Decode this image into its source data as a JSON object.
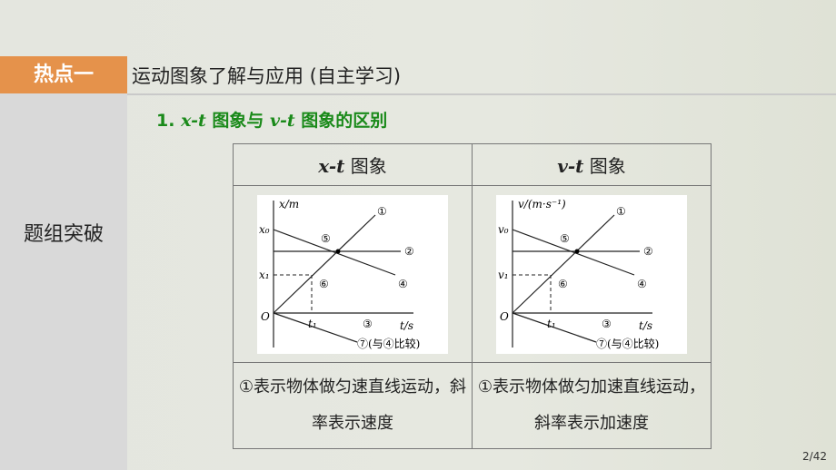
{
  "header": {
    "tag": "热点一",
    "title": "运动图象了解与应用 (自主学习)"
  },
  "sidebar": {
    "label": "题组突破"
  },
  "subtitle": {
    "num": "1.",
    "a": "x-t",
    "mid": " 图象与 ",
    "b": "v-t",
    "end": " 图象的区别"
  },
  "table": {
    "headers": [
      {
        "var": "x-t",
        "word": " 图象"
      },
      {
        "var": "v-t",
        "word": " 图象"
      }
    ],
    "diagrams": [
      {
        "ylabel": "x/m",
        "y0": "x₀",
        "y1": "x₁",
        "origin": "O",
        "t1": "t₁",
        "xlabel": "t/s",
        "l1": "①",
        "l2": "②",
        "l3": "③",
        "l4": "④",
        "l5": "⑤",
        "l6": "⑥",
        "l7": "⑦(与④比较)"
      },
      {
        "ylabel": "v/(m·s⁻¹)",
        "y0": "v₀",
        "y1": "v₁",
        "origin": "O",
        "t1": "t₁",
        "xlabel": "t/s",
        "l1": "①",
        "l2": "②",
        "l3": "③",
        "l4": "④",
        "l5": "⑤",
        "l6": "⑥",
        "l7": "⑦(与④比较)"
      }
    ],
    "descriptions": [
      "①表示物体做匀速直线运动，斜率表示速度",
      "①表示物体做匀加速直线运动，斜率表示加速度"
    ]
  },
  "page": "2/42"
}
